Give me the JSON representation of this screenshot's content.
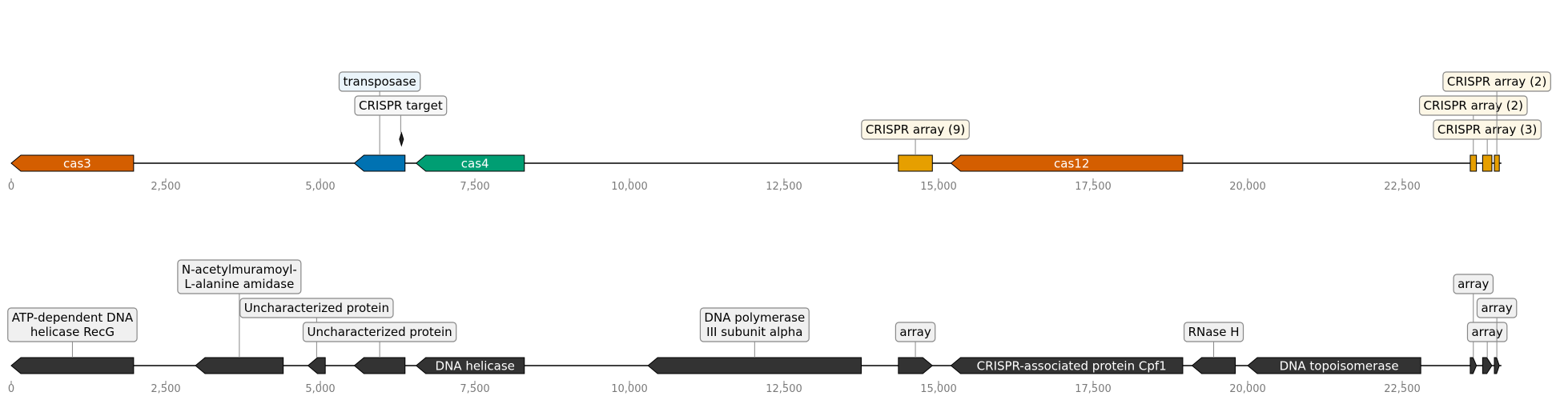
{
  "axis": {
    "ticks": [
      0,
      2500,
      5000,
      7500,
      10000,
      12500,
      15000,
      17500,
      20000,
      22500
    ],
    "tick_labels": [
      "0",
      "2,500",
      "5,000",
      "7,500",
      "10,000",
      "12,500",
      "15,000",
      "17,500",
      "20,000",
      "22,500"
    ],
    "sequence_length": 24000
  },
  "tracks": [
    {
      "features": [
        {
          "name": "cas3-gene",
          "start": 0,
          "end": 1980,
          "strand": -1,
          "color": "#d45e00",
          "inside_label": "cas3",
          "inside_color": "#ffffff"
        },
        {
          "name": "transposase-gene",
          "start": 5550,
          "end": 6370,
          "strand": -1,
          "color": "#0072b2",
          "box_label": "transposase",
          "box_fill": "#eaf4fa",
          "box_level": 3
        },
        {
          "name": "crispr-target-site",
          "start": 6280,
          "end": 6320,
          "strand": -1,
          "color": "#222222",
          "small": true,
          "box_label": "CRISPR target",
          "box_fill": "#f7f7f7",
          "box_level": 2
        },
        {
          "name": "cas4-gene",
          "start": 6550,
          "end": 8300,
          "strand": -1,
          "color": "#009e73",
          "inside_label": "cas4",
          "inside_color": "#ffffff"
        },
        {
          "name": "crispr-array-9",
          "start": 14350,
          "end": 14900,
          "strand": 0,
          "color": "#e69f00",
          "box_label": "CRISPR array (9)",
          "box_fill": "#fdf7e6",
          "box_level": 1
        },
        {
          "name": "cas12-gene",
          "start": 15200,
          "end": 18950,
          "strand": -1,
          "color": "#d45e00",
          "inside_label": "cas12",
          "inside_color": "#ffffff"
        },
        {
          "name": "crispr-array-2a",
          "start": 23600,
          "end": 23700,
          "strand": 0,
          "color": "#e69f00",
          "box_label": "CRISPR array (2)",
          "box_fill": "#fdf7e6",
          "box_level": 2
        },
        {
          "name": "crispr-array-3",
          "start": 23800,
          "end": 23950,
          "strand": 0,
          "color": "#e69f00",
          "box_label": "CRISPR array (3)",
          "box_fill": "#fdf7e6",
          "box_level": 1
        },
        {
          "name": "crispr-array-2b",
          "start": 23990,
          "end": 24070,
          "strand": 0,
          "color": "#e69f00",
          "box_label": "CRISPR array (2)",
          "box_fill": "#fdf7e6",
          "box_level": 3
        }
      ]
    },
    {
      "features": [
        {
          "name": "recg-gene",
          "start": 0,
          "end": 1980,
          "strand": -1,
          "color": "#333333",
          "box_label": "ATP-dependent DNA\nhelicase RecG",
          "box_fill": "#f0f0f0",
          "box_level": 1
        },
        {
          "name": "amidase-gene",
          "start": 2980,
          "end": 4400,
          "strand": -1,
          "color": "#333333",
          "box_label": "N-acetylmuramoyl-\nL-alanine amidase",
          "box_fill": "#f0f0f0",
          "box_level": 3
        },
        {
          "name": "uncharacterized-protein-1",
          "start": 4800,
          "end": 5080,
          "strand": -1,
          "color": "#333333",
          "box_label": "Uncharacterized protein",
          "box_fill": "#f0f0f0",
          "box_level": 2
        },
        {
          "name": "uncharacterized-protein-2",
          "start": 5550,
          "end": 6370,
          "strand": -1,
          "color": "#333333",
          "box_label": "Uncharacterized protein",
          "box_fill": "#f0f0f0",
          "box_level": 1
        },
        {
          "name": "dna-helicase-gene",
          "start": 6550,
          "end": 8300,
          "strand": -1,
          "color": "#333333",
          "inside_label": "DNA helicase",
          "inside_color": "#ffffff"
        },
        {
          "name": "dna-pol3-alpha-gene",
          "start": 10300,
          "end": 13750,
          "strand": -1,
          "color": "#333333",
          "box_label": "DNA polymerase\nIII subunit alpha",
          "box_fill": "#f0f0f0",
          "box_level": 1
        },
        {
          "name": "array-1",
          "start": 14350,
          "end": 14900,
          "strand": 1,
          "color": "#333333",
          "box_label": "array",
          "box_fill": "#f0f0f0",
          "box_level": 1
        },
        {
          "name": "cpf1-gene",
          "start": 15200,
          "end": 18950,
          "strand": -1,
          "color": "#333333",
          "inside_label": "CRISPR-associated protein Cpf1",
          "inside_color": "#ffffff"
        },
        {
          "name": "rnase-h-gene",
          "start": 19100,
          "end": 19800,
          "strand": -1,
          "color": "#333333",
          "box_label": "RNase H",
          "box_fill": "#f0f0f0",
          "box_level": 1
        },
        {
          "name": "topoisomerase-gene",
          "start": 20000,
          "end": 22800,
          "strand": -1,
          "color": "#333333",
          "inside_label": "DNA topoisomerase",
          "inside_color": "#ffffff"
        },
        {
          "name": "array-2",
          "start": 23600,
          "end": 23700,
          "strand": 1,
          "color": "#333333",
          "box_label": "array",
          "box_fill": "#f0f0f0",
          "box_level": 3
        },
        {
          "name": "array-3",
          "start": 23800,
          "end": 23950,
          "strand": 1,
          "color": "#333333",
          "box_label": "array",
          "box_fill": "#f0f0f0",
          "box_level": 1
        },
        {
          "name": "array-4",
          "start": 23990,
          "end": 24070,
          "strand": 1,
          "color": "#333333",
          "box_label": "array",
          "box_fill": "#f0f0f0",
          "box_level": 2
        }
      ]
    }
  ]
}
